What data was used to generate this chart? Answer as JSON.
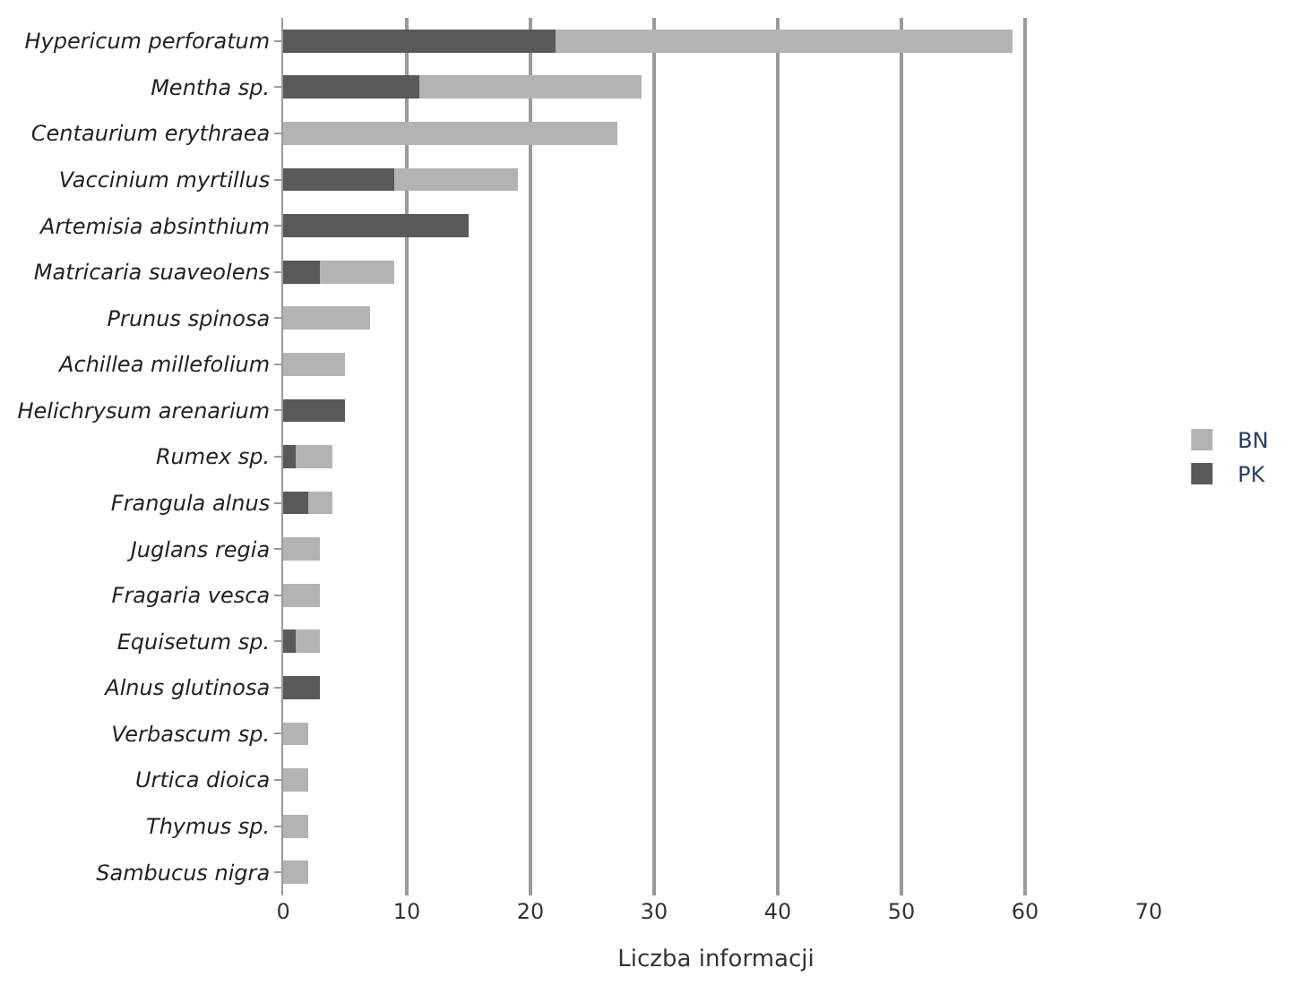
{
  "chart_data": {
    "type": "bar",
    "orientation": "horizontal",
    "stacked": true,
    "xlabel": "Liczba informacji",
    "categories": [
      "Hypericum perforatum",
      "Mentha sp.",
      "Centaurium erythraea",
      "Vaccinium myrtillus",
      "Artemisia absinthium",
      "Matricaria suaveolens",
      "Prunus spinosa",
      "Achillea millefolium",
      "Helichrysum arenarium",
      "Rumex sp.",
      "Frangula alnus",
      "Juglans regia",
      "Fragaria vesca",
      "Equisetum sp.",
      "Alnus glutinosa",
      "Verbascum sp.",
      "Urtica dioica",
      "Thymus sp.",
      "Sambucus nigra"
    ],
    "series": [
      {
        "name": "PK",
        "color": "#595959",
        "values": [
          22,
          11,
          0,
          9,
          15,
          3,
          0,
          0,
          5,
          1,
          2,
          0,
          0,
          1,
          3,
          0,
          0,
          0,
          0
        ]
      },
      {
        "name": "BN",
        "color": "#b3b3b3",
        "values": [
          37,
          18,
          27,
          10,
          0,
          6,
          7,
          5,
          0,
          3,
          2,
          3,
          3,
          2,
          0,
          2,
          2,
          2,
          2
        ]
      }
    ],
    "xlim": [
      0,
      70
    ],
    "xticks": [
      0,
      10,
      20,
      30,
      40,
      50,
      60,
      70
    ],
    "grid": "x",
    "legend": "right"
  }
}
